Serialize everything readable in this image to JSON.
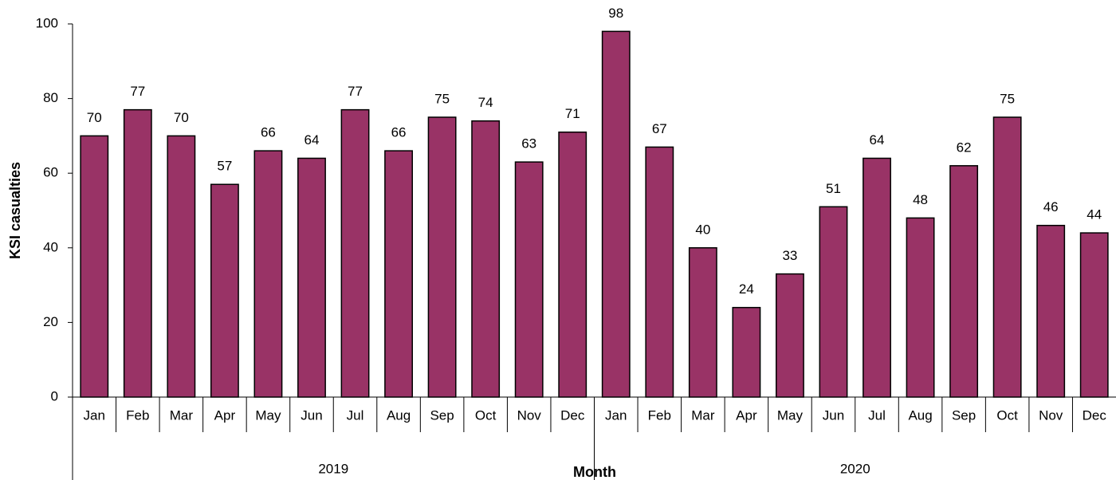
{
  "chart_data": {
    "type": "bar",
    "y_label": "KSI casualties",
    "x_label": "Month",
    "color": "#993366",
    "ylim": [
      0,
      100
    ],
    "yticks": [
      0,
      20,
      40,
      60,
      80,
      100
    ],
    "groups": [
      {
        "name": "2019",
        "categories": [
          "Jan",
          "Feb",
          "Mar",
          "Apr",
          "May",
          "Jun",
          "Jul",
          "Aug",
          "Sep",
          "Oct",
          "Nov",
          "Dec"
        ],
        "values": [
          70,
          77,
          70,
          57,
          66,
          64,
          77,
          66,
          75,
          74,
          63,
          71
        ]
      },
      {
        "name": "2020",
        "categories": [
          "Jan",
          "Feb",
          "Mar",
          "Apr",
          "May",
          "Jun",
          "Jul",
          "Aug",
          "Sep",
          "Oct",
          "Nov",
          "Dec"
        ],
        "values": [
          98,
          67,
          40,
          24,
          33,
          51,
          64,
          48,
          62,
          75,
          46,
          44
        ]
      }
    ]
  }
}
